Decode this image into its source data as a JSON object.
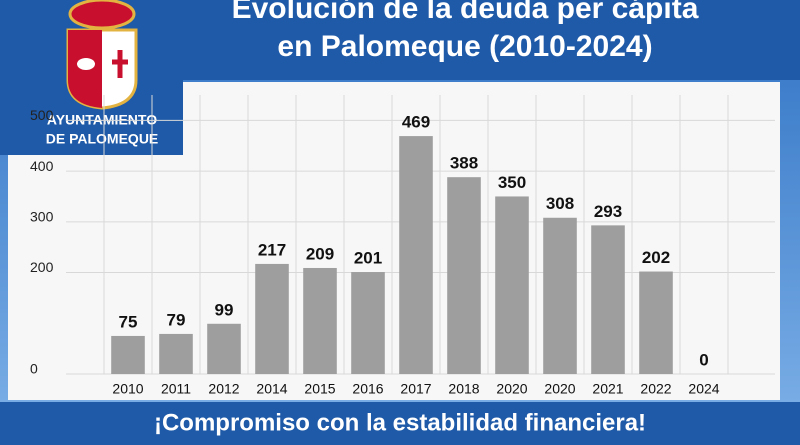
{
  "chart_data": {
    "type": "bar",
    "title": "Evolución de la deuda per cápita",
    "subtitle": "en Palomeque (2010-2024)",
    "categories": [
      "2010",
      "2011",
      "2012",
      "2014",
      "2015",
      "2016",
      "2017",
      "2018",
      "2020",
      "2020",
      "2021",
      "2022",
      "2024"
    ],
    "values": [
      75,
      79,
      99,
      217,
      209,
      201,
      469,
      388,
      350,
      308,
      293,
      202,
      0
    ],
    "color": "#9e9e9e",
    "ylim": [
      0,
      550
    ],
    "yticks": [
      0,
      200,
      300,
      400,
      500
    ],
    "grid": true
  },
  "logo": {
    "line1": "AYUNTAMIENTO",
    "line2": "DE PALOMEQUE"
  },
  "footer": "¡Compromiso con la estabilidad financiera!"
}
